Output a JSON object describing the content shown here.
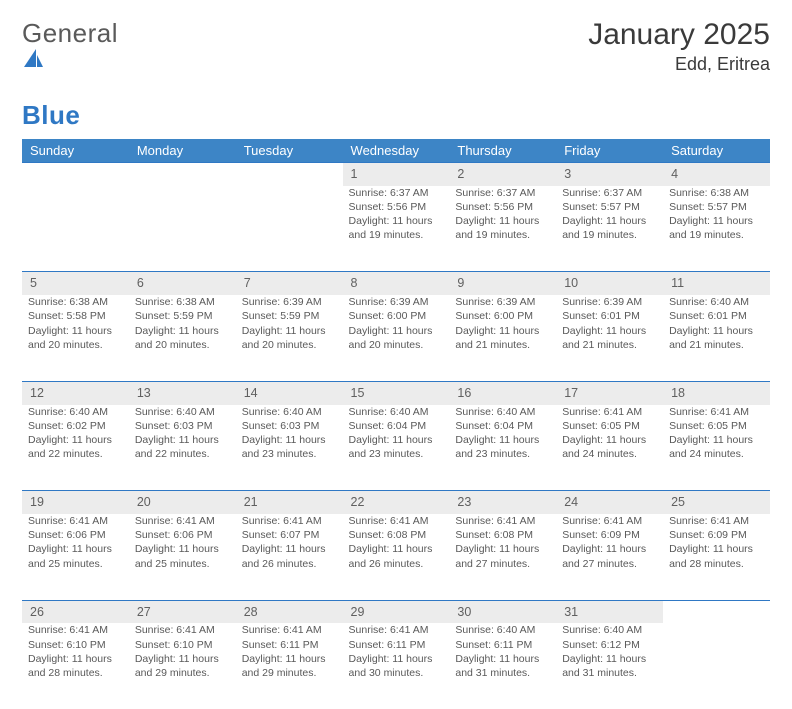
{
  "brand": {
    "name_a": "General",
    "name_b": "Blue"
  },
  "header": {
    "month_title": "January 2025",
    "location": "Edd, Eritrea"
  },
  "style": {
    "accent": "#3d85c6",
    "accent_dark": "#2f78c4",
    "daynum_bg": "#ececec",
    "text": "#595959",
    "page_bg": "#ffffff"
  },
  "calendar": {
    "type": "table",
    "day_headers": [
      "Sunday",
      "Monday",
      "Tuesday",
      "Wednesday",
      "Thursday",
      "Friday",
      "Saturday"
    ],
    "weeks": [
      [
        null,
        null,
        null,
        {
          "n": "1",
          "sunrise": "6:37 AM",
          "sunset": "5:56 PM",
          "day_h": 11,
          "day_m": 19
        },
        {
          "n": "2",
          "sunrise": "6:37 AM",
          "sunset": "5:56 PM",
          "day_h": 11,
          "day_m": 19
        },
        {
          "n": "3",
          "sunrise": "6:37 AM",
          "sunset": "5:57 PM",
          "day_h": 11,
          "day_m": 19
        },
        {
          "n": "4",
          "sunrise": "6:38 AM",
          "sunset": "5:57 PM",
          "day_h": 11,
          "day_m": 19
        }
      ],
      [
        {
          "n": "5",
          "sunrise": "6:38 AM",
          "sunset": "5:58 PM",
          "day_h": 11,
          "day_m": 20
        },
        {
          "n": "6",
          "sunrise": "6:38 AM",
          "sunset": "5:59 PM",
          "day_h": 11,
          "day_m": 20
        },
        {
          "n": "7",
          "sunrise": "6:39 AM",
          "sunset": "5:59 PM",
          "day_h": 11,
          "day_m": 20
        },
        {
          "n": "8",
          "sunrise": "6:39 AM",
          "sunset": "6:00 PM",
          "day_h": 11,
          "day_m": 20
        },
        {
          "n": "9",
          "sunrise": "6:39 AM",
          "sunset": "6:00 PM",
          "day_h": 11,
          "day_m": 21
        },
        {
          "n": "10",
          "sunrise": "6:39 AM",
          "sunset": "6:01 PM",
          "day_h": 11,
          "day_m": 21
        },
        {
          "n": "11",
          "sunrise": "6:40 AM",
          "sunset": "6:01 PM",
          "day_h": 11,
          "day_m": 21
        }
      ],
      [
        {
          "n": "12",
          "sunrise": "6:40 AM",
          "sunset": "6:02 PM",
          "day_h": 11,
          "day_m": 22
        },
        {
          "n": "13",
          "sunrise": "6:40 AM",
          "sunset": "6:03 PM",
          "day_h": 11,
          "day_m": 22
        },
        {
          "n": "14",
          "sunrise": "6:40 AM",
          "sunset": "6:03 PM",
          "day_h": 11,
          "day_m": 23
        },
        {
          "n": "15",
          "sunrise": "6:40 AM",
          "sunset": "6:04 PM",
          "day_h": 11,
          "day_m": 23
        },
        {
          "n": "16",
          "sunrise": "6:40 AM",
          "sunset": "6:04 PM",
          "day_h": 11,
          "day_m": 23
        },
        {
          "n": "17",
          "sunrise": "6:41 AM",
          "sunset": "6:05 PM",
          "day_h": 11,
          "day_m": 24
        },
        {
          "n": "18",
          "sunrise": "6:41 AM",
          "sunset": "6:05 PM",
          "day_h": 11,
          "day_m": 24
        }
      ],
      [
        {
          "n": "19",
          "sunrise": "6:41 AM",
          "sunset": "6:06 PM",
          "day_h": 11,
          "day_m": 25
        },
        {
          "n": "20",
          "sunrise": "6:41 AM",
          "sunset": "6:06 PM",
          "day_h": 11,
          "day_m": 25
        },
        {
          "n": "21",
          "sunrise": "6:41 AM",
          "sunset": "6:07 PM",
          "day_h": 11,
          "day_m": 26
        },
        {
          "n": "22",
          "sunrise": "6:41 AM",
          "sunset": "6:08 PM",
          "day_h": 11,
          "day_m": 26
        },
        {
          "n": "23",
          "sunrise": "6:41 AM",
          "sunset": "6:08 PM",
          "day_h": 11,
          "day_m": 27
        },
        {
          "n": "24",
          "sunrise": "6:41 AM",
          "sunset": "6:09 PM",
          "day_h": 11,
          "day_m": 27
        },
        {
          "n": "25",
          "sunrise": "6:41 AM",
          "sunset": "6:09 PM",
          "day_h": 11,
          "day_m": 28
        }
      ],
      [
        {
          "n": "26",
          "sunrise": "6:41 AM",
          "sunset": "6:10 PM",
          "day_h": 11,
          "day_m": 28
        },
        {
          "n": "27",
          "sunrise": "6:41 AM",
          "sunset": "6:10 PM",
          "day_h": 11,
          "day_m": 29
        },
        {
          "n": "28",
          "sunrise": "6:41 AM",
          "sunset": "6:11 PM",
          "day_h": 11,
          "day_m": 29
        },
        {
          "n": "29",
          "sunrise": "6:41 AM",
          "sunset": "6:11 PM",
          "day_h": 11,
          "day_m": 30
        },
        {
          "n": "30",
          "sunrise": "6:40 AM",
          "sunset": "6:11 PM",
          "day_h": 11,
          "day_m": 31
        },
        {
          "n": "31",
          "sunrise": "6:40 AM",
          "sunset": "6:12 PM",
          "day_h": 11,
          "day_m": 31
        },
        null
      ]
    ],
    "labels": {
      "sunrise": "Sunrise:",
      "sunset": "Sunset:",
      "daylight": "Daylight:"
    }
  }
}
